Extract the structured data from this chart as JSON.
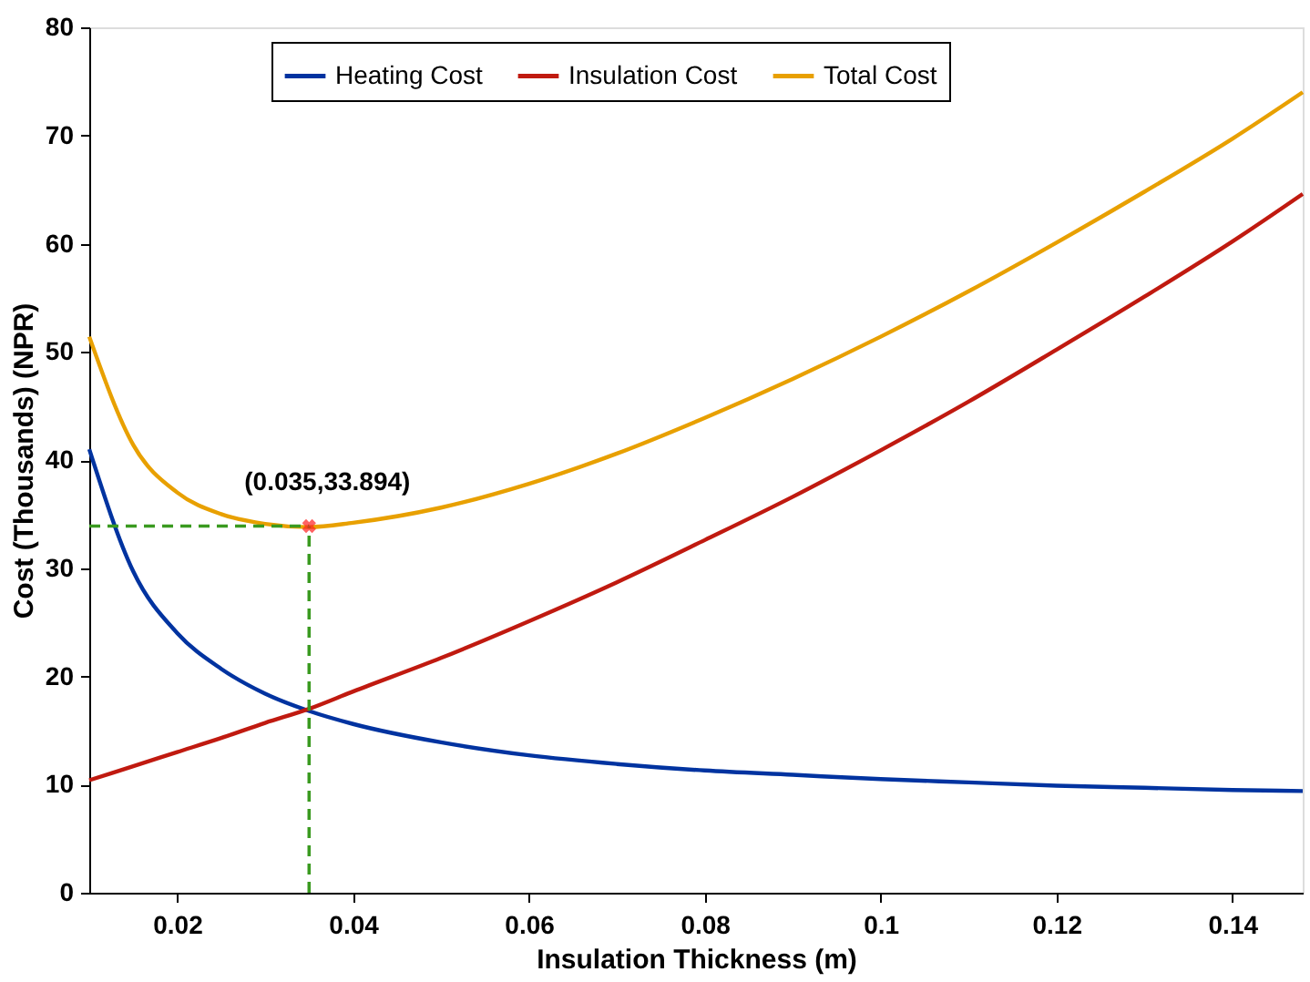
{
  "chart_data": {
    "type": "line",
    "xlabel": "Insulation Thickness (m)",
    "ylabel": "Cost (Thousands) (NPR)",
    "x": [
      0.01,
      0.015,
      0.02,
      0.025,
      0.03,
      0.035,
      0.04,
      0.05,
      0.06,
      0.07,
      0.08,
      0.09,
      0.1,
      0.11,
      0.12,
      0.13,
      0.14,
      0.148
    ],
    "series": [
      {
        "name": "Heating Cost",
        "color": "#0033a0",
        "values": [
          41,
          29.7,
          24.0,
          20.7,
          18.4,
          16.8,
          15.6,
          13.9,
          12.7,
          11.9,
          11.3,
          10.9,
          10.5,
          10.2,
          9.9,
          9.7,
          9.5,
          9.4
        ]
      },
      {
        "name": "Insulation Cost",
        "color": "#c01a10",
        "values": [
          10.4,
          11.7,
          13.0,
          14.3,
          15.7,
          17.0,
          18.6,
          21.7,
          25.1,
          28.7,
          32.6,
          36.6,
          40.9,
          45.4,
          50.2,
          55.1,
          60.2,
          64.6
        ]
      },
      {
        "name": "Total Cost",
        "color": "#e8a000",
        "values": [
          51.4,
          41.4,
          37.0,
          35.0,
          34.1,
          33.8,
          34.2,
          35.6,
          37.8,
          40.6,
          43.9,
          47.5,
          51.4,
          55.6,
          60.1,
          64.8,
          69.7,
          74.0
        ]
      }
    ],
    "xlim": [
      0.01,
      0.148
    ],
    "xticks": [
      0.02,
      0.04,
      0.06,
      0.08,
      0.1,
      0.12,
      0.14
    ],
    "ylim": [
      0,
      80
    ],
    "yticks": [
      0,
      10,
      20,
      30,
      40,
      50,
      60,
      70,
      80
    ],
    "annotations": [
      {
        "text": "(0.035,33.894)",
        "x": 0.035,
        "y": 33.894
      }
    ],
    "ref_lines": [
      {
        "axis": "x",
        "value": 0.035,
        "color": "#3a9a20",
        "line_style": "dashed"
      },
      {
        "axis": "y",
        "value": 33.894,
        "color": "#3a9a20",
        "line_style": "dashed"
      }
    ],
    "legend": "top",
    "grid": false,
    "marker": "none",
    "line_style": "solid"
  }
}
